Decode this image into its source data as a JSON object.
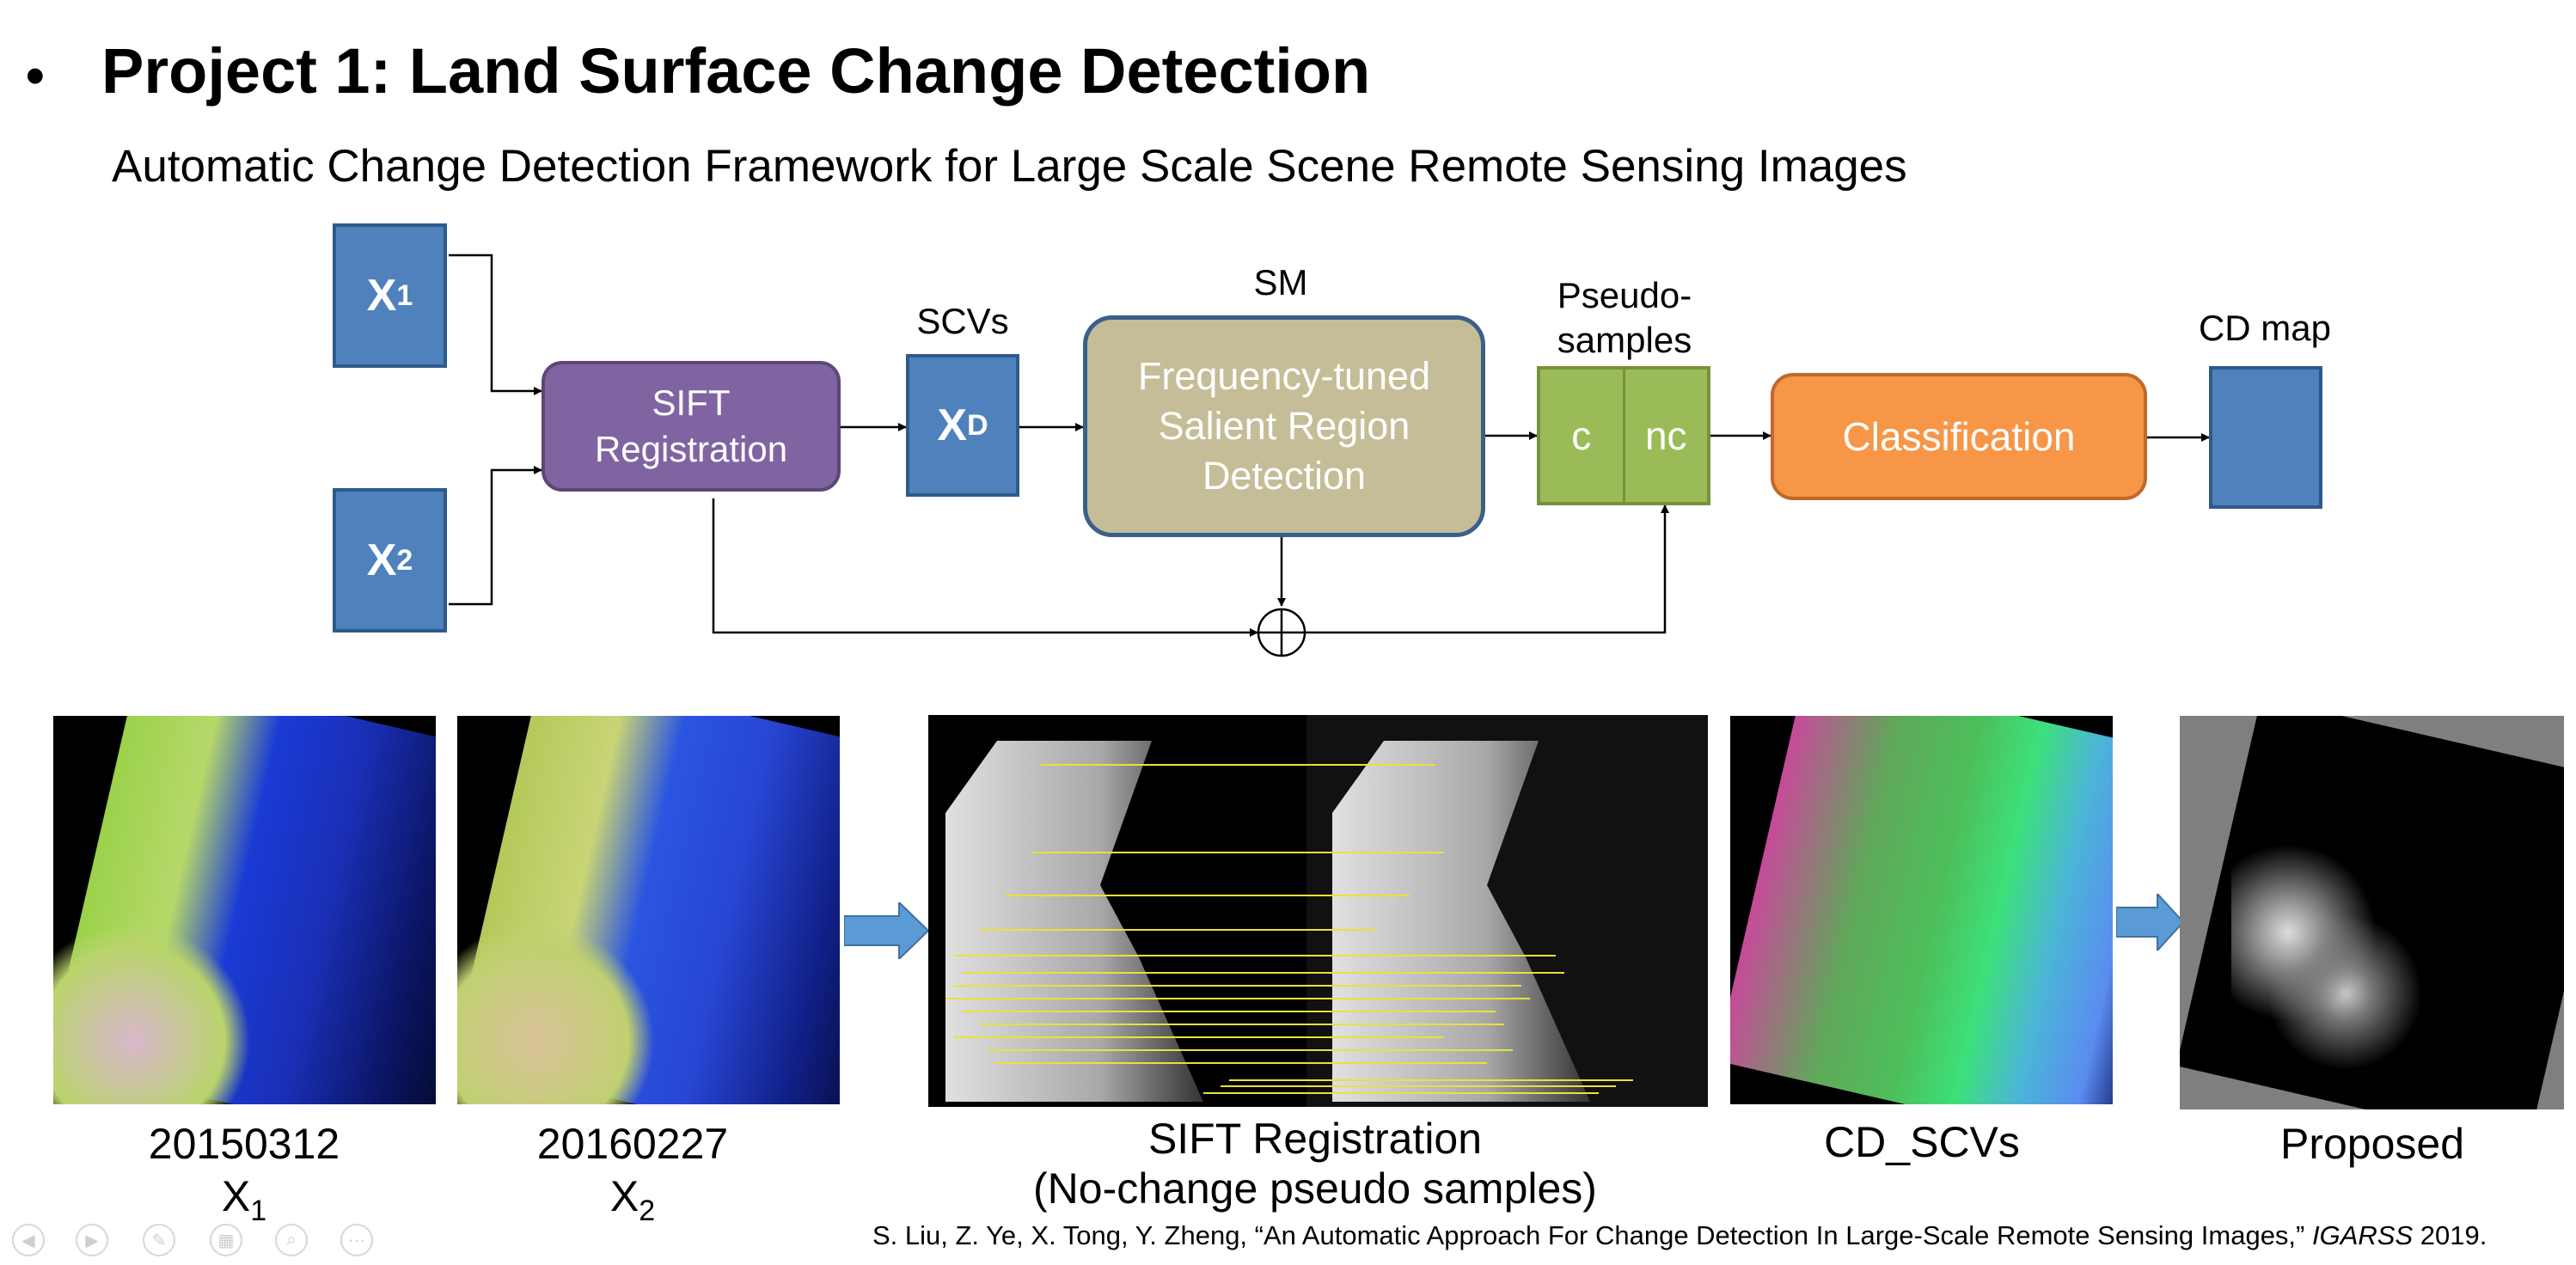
{
  "slide": {
    "bullet": "•",
    "title": "Project 1: Land Surface Change Detection",
    "subtitle": "Automatic Change Detection Framework for Large Scale Scene Remote Sensing Images"
  },
  "diagram": {
    "x1": {
      "main": "X",
      "sub": "1"
    },
    "x2": {
      "main": "X",
      "sub": "2"
    },
    "sift": "SIFT Registration",
    "scvs_label": "SCVs",
    "xd": {
      "main": "X",
      "sub": "D"
    },
    "sm_label": "SM",
    "sm_box": "Frequency-tuned Salient Region Detection",
    "pseudo_label": "Pseudo-samples",
    "c": "c",
    "nc": "nc",
    "classification": "Classification",
    "cdmap_label": "CD map"
  },
  "images": {
    "img1": {
      "date": "20150312",
      "var": "X",
      "sub": "1"
    },
    "img2": {
      "date": "20160227",
      "var": "X",
      "sub": "2"
    },
    "sift_caption_1": "SIFT Registration",
    "sift_caption_2": "(No-change pseudo samples)",
    "cd_scvs": "CD_SCVs",
    "proposed": "Proposed"
  },
  "citation": {
    "text": "S. Liu, Z. Ye, X. Tong, Y. Zheng, “An Automatic Approach For Change Detection In Large-Scale Remote Sensing Images,” ",
    "venue": "IGARSS",
    "year": " 2019."
  },
  "nav_icons": [
    "prev-icon",
    "next-icon",
    "pen-icon",
    "slides-icon",
    "zoom-icon",
    "more-icon"
  ],
  "colors": {
    "blue_box": "#4f81bd",
    "purple_box": "#8064a2",
    "tan_box": "#c4bd97",
    "green_box": "#9bbb59",
    "orange_box": "#f79646",
    "arrow_blue": "#5b9bd5"
  }
}
